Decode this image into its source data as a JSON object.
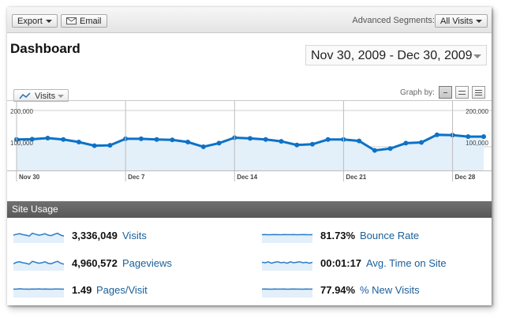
{
  "toolbar": {
    "export_label": "Export",
    "email_label": "Email",
    "segments_label": "Advanced Segments:",
    "segments_value": "All Visits"
  },
  "page": {
    "title": "Dashboard",
    "date_range": "Nov 30, 2009 - Dec 30, 2009"
  },
  "graph": {
    "metric_label": "Visits",
    "graph_by_label": "Graph by:",
    "graph_by_options": [
      "day-icon",
      "week-icon",
      "month-icon"
    ],
    "selected_option": "day-icon"
  },
  "chart_data": {
    "type": "line",
    "series": [
      {
        "values": [
          120000,
          121000,
          124000,
          120000,
          113000,
          103000,
          104000,
          122000,
          122000,
          120000,
          119000,
          113000,
          100000,
          110000,
          125000,
          123000,
          120000,
          115000,
          105000,
          107000,
          120000,
          120000,
          116000,
          90000,
          95000,
          110000,
          112000,
          133000,
          132000,
          128000,
          128000
        ]
      }
    ],
    "x_labels": [
      "Nov 30",
      "Dec 7",
      "Dec 14",
      "Dec 21",
      "Dec 28"
    ],
    "x_label_indices": [
      0,
      7,
      14,
      21,
      28
    ],
    "y_ticks": [
      "200,000",
      "100,000"
    ],
    "y_tick_values": [
      200000,
      100000
    ],
    "ylim": [
      0,
      200000
    ],
    "colors": {
      "line": "#0d72c6",
      "fill": "#e3eff9",
      "grid": "#cfcfcf"
    }
  },
  "site_usage": {
    "header": "Site Usage",
    "metrics": [
      {
        "value": "3,336,049",
        "label": "Visits",
        "spark": [
          0.5,
          0.4,
          0.35,
          0.45,
          0.5,
          0.6,
          0.3,
          0.4,
          0.5,
          0.45,
          0.35,
          0.5,
          0.55,
          0.4,
          0.3,
          0.5,
          0.6
        ]
      },
      {
        "value": "4,960,572",
        "label": "Pageviews",
        "spark": [
          0.6,
          0.45,
          0.4,
          0.5,
          0.55,
          0.65,
          0.35,
          0.45,
          0.55,
          0.5,
          0.4,
          0.55,
          0.6,
          0.45,
          0.35,
          0.55,
          0.65
        ]
      },
      {
        "value": "1.49",
        "label": "Pages/Visit",
        "spark": [
          0.45,
          0.45,
          0.42,
          0.44,
          0.45,
          0.46,
          0.44,
          0.45,
          0.43,
          0.45,
          0.44,
          0.45,
          0.46,
          0.44,
          0.44,
          0.45,
          0.45
        ]
      },
      {
        "value": "81.73%",
        "label": "Bounce Rate",
        "spark": [
          0.45,
          0.44,
          0.46,
          0.45,
          0.44,
          0.45,
          0.46,
          0.44,
          0.45,
          0.45,
          0.44,
          0.46,
          0.45,
          0.44,
          0.45,
          0.46,
          0.45
        ]
      },
      {
        "value": "00:01:17",
        "label": "Avg. Time on Site",
        "spark": [
          0.45,
          0.5,
          0.4,
          0.55,
          0.45,
          0.4,
          0.5,
          0.45,
          0.55,
          0.4,
          0.5,
          0.45,
          0.4,
          0.5,
          0.45,
          0.55,
          0.45
        ]
      },
      {
        "value": "77.94%",
        "label": "% New Visits",
        "spark": [
          0.45,
          0.44,
          0.45,
          0.46,
          0.44,
          0.45,
          0.45,
          0.44,
          0.46,
          0.45,
          0.44,
          0.45,
          0.45,
          0.46,
          0.44,
          0.45,
          0.45
        ]
      }
    ]
  }
}
